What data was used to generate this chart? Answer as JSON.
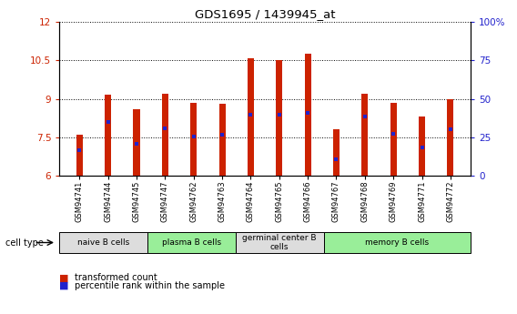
{
  "title": "GDS1695 / 1439945_at",
  "samples": [
    "GSM94741",
    "GSM94744",
    "GSM94745",
    "GSM94747",
    "GSM94762",
    "GSM94763",
    "GSM94764",
    "GSM94765",
    "GSM94766",
    "GSM94767",
    "GSM94768",
    "GSM94769",
    "GSM94771",
    "GSM94772"
  ],
  "transformed_counts": [
    7.6,
    9.15,
    8.6,
    9.2,
    8.85,
    8.8,
    10.6,
    10.5,
    10.75,
    7.8,
    9.2,
    8.85,
    8.3,
    9.0
  ],
  "percentile_ranks": [
    7.0,
    8.1,
    7.25,
    7.85,
    7.55,
    7.6,
    8.4,
    8.4,
    8.45,
    6.65,
    8.3,
    7.65,
    7.1,
    7.8
  ],
  "ylim_left": [
    6,
    12
  ],
  "ylim_right": [
    0,
    100
  ],
  "yticks_left": [
    6,
    7.5,
    9,
    10.5,
    12
  ],
  "ytick_labels_left": [
    "6",
    "7.5",
    "9",
    "10.5",
    "12"
  ],
  "ytick_labels_right": [
    "0",
    "25",
    "50",
    "75",
    "100%"
  ],
  "yticks_right": [
    0,
    25,
    50,
    75,
    100
  ],
  "bar_color": "#cc2200",
  "percentile_color": "#2222cc",
  "cell_groups": [
    {
      "label": "naive B cells",
      "start": 0,
      "end": 2,
      "color": "#dddddd"
    },
    {
      "label": "plasma B cells",
      "start": 3,
      "end": 5,
      "color": "#99ee99"
    },
    {
      "label": "germinal center B\ncells",
      "start": 6,
      "end": 8,
      "color": "#dddddd"
    },
    {
      "label": "memory B cells",
      "start": 9,
      "end": 13,
      "color": "#99ee99"
    }
  ],
  "legend_red_label": "transformed count",
  "legend_blue_label": "percentile rank within the sample",
  "bar_width": 0.5,
  "cell_type_label": "cell type"
}
